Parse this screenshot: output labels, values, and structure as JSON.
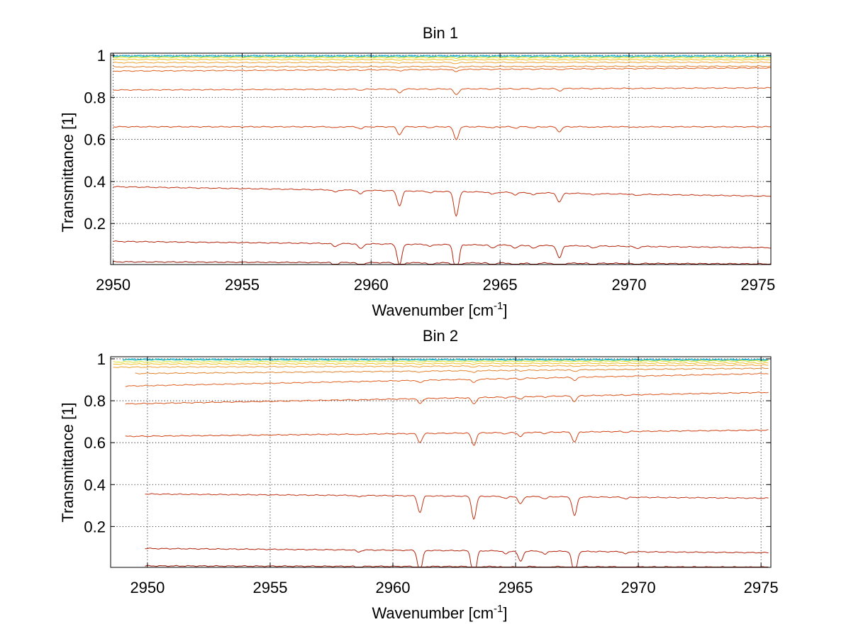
{
  "chart_data": [
    {
      "type": "line",
      "title": "Bin 1",
      "xlabel": "Wavenumber [cm",
      "xlabel_sup": "-1",
      "xlabel_end": "]",
      "ylabel": "Transmittance [1]",
      "xlim": [
        2949.9,
        2975.5
      ],
      "ylim": [
        0.005,
        1.01
      ],
      "xticks": [
        2950,
        2955,
        2960,
        2965,
        2970,
        2975
      ],
      "yticks": [
        0.2,
        0.4,
        0.6,
        0.8,
        1
      ],
      "ytick_labels": [
        "0.2",
        "0.4",
        "0.6",
        "0.8",
        "1"
      ],
      "grid": true,
      "x_start": 2950.0,
      "x_end": 2975.5,
      "series": [
        {
          "color": "#00a0e0",
          "start": 0.998,
          "end": 0.997
        },
        {
          "color": "#30c0a0",
          "start": 0.995,
          "end": 0.994
        },
        {
          "color": "#e0e020",
          "start": 0.99,
          "end": 0.988
        },
        {
          "color": "#f0c020",
          "start": 0.98,
          "end": 0.979
        },
        {
          "color": "#f0a030",
          "start": 0.965,
          "end": 0.967
        },
        {
          "color": "#e08028",
          "start": 0.945,
          "end": 0.948
        },
        {
          "color": "#e06020",
          "start": 0.925,
          "end": 0.94
        },
        {
          "color": "#d85018",
          "start": 0.835,
          "end": 0.845
        },
        {
          "color": "#d04010",
          "start": 0.66,
          "end": 0.66
        },
        {
          "color": "#c03010",
          "start": 0.375,
          "end": 0.33
        },
        {
          "color": "#b02008",
          "start": 0.115,
          "end": 0.085
        },
        {
          "color": "#901000",
          "start": 0.018,
          "end": 0.008
        }
      ],
      "dips": [
        {
          "x": 2961.1,
          "scale": 0.2
        },
        {
          "x": 2963.3,
          "scale": 0.32
        },
        {
          "x": 2967.3,
          "scale": 0.12
        },
        {
          "x": 2959.6,
          "scale": 0.05
        },
        {
          "x": 2958.6,
          "scale": 0.03
        },
        {
          "x": 2962.3,
          "scale": 0.02
        },
        {
          "x": 2964.7,
          "scale": 0.03
        },
        {
          "x": 2965.6,
          "scale": 0.03
        },
        {
          "x": 2966.3,
          "scale": 0.03
        },
        {
          "x": 2968.6,
          "scale": 0.02
        },
        {
          "x": 2970.3,
          "scale": 0.02
        }
      ]
    },
    {
      "type": "line",
      "title": "Bin 2",
      "xlabel": "Wavenumber [cm",
      "xlabel_sup": "-1",
      "xlabel_end": "]",
      "ylabel": "Transmittance [1]",
      "xlim": [
        2948.5,
        2975.4
      ],
      "ylim": [
        0.005,
        1.01
      ],
      "xticks": [
        2950,
        2955,
        2960,
        2965,
        2970,
        2975
      ],
      "yticks": [
        0.2,
        0.4,
        0.6,
        0.8,
        1
      ],
      "ytick_labels": [
        "0.2",
        "0.4",
        "0.6",
        "0.8",
        "1"
      ],
      "grid": true,
      "x_end": 2975.3,
      "series": [
        {
          "color": "#00a0e0",
          "x_start": 2949.0,
          "start": 0.998,
          "end": 0.997
        },
        {
          "color": "#30c0a0",
          "x_start": 2949.0,
          "start": 0.995,
          "end": 0.994
        },
        {
          "color": "#e0e020",
          "x_start": 2948.6,
          "start": 0.985,
          "end": 0.99
        },
        {
          "color": "#f0c020",
          "x_start": 2948.6,
          "start": 0.975,
          "end": 0.98
        },
        {
          "color": "#f0a030",
          "x_start": 2948.6,
          "start": 0.96,
          "end": 0.97
        },
        {
          "color": "#e08028",
          "x_start": 2949.5,
          "start": 0.93,
          "end": 0.955
        },
        {
          "color": "#e06020",
          "x_start": 2949.1,
          "start": 0.87,
          "end": 0.93
        },
        {
          "color": "#d85018",
          "x_start": 2949.1,
          "start": 0.785,
          "end": 0.84
        },
        {
          "color": "#d04010",
          "x_start": 2949.1,
          "start": 0.63,
          "end": 0.66
        },
        {
          "color": "#c03010",
          "x_start": 2949.9,
          "start": 0.355,
          "end": 0.335
        },
        {
          "color": "#b02008",
          "x_start": 2949.9,
          "start": 0.095,
          "end": 0.075
        },
        {
          "color": "#901000",
          "x_start": 2949.9,
          "start": 0.012,
          "end": 0.006
        }
      ],
      "dips": [
        {
          "x": 2961.1,
          "scale": 0.22
        },
        {
          "x": 2963.3,
          "scale": 0.3
        },
        {
          "x": 2965.2,
          "scale": 0.1
        },
        {
          "x": 2967.4,
          "scale": 0.25
        },
        {
          "x": 2964.6,
          "scale": 0.03
        },
        {
          "x": 2966.2,
          "scale": 0.03
        },
        {
          "x": 2958.6,
          "scale": 0.02
        },
        {
          "x": 2969.5,
          "scale": 0.02
        }
      ]
    }
  ]
}
